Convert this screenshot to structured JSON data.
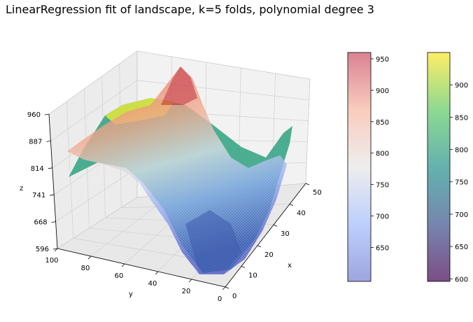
{
  "chart_data": [
    {
      "type": "surface3d",
      "title": "LinearRegression fit of landscape, k=5 folds, polynomial degree 3",
      "xlabel": "x",
      "ylabel": "y",
      "zlabel": "z",
      "xlim": [
        0,
        50
      ],
      "ylim": [
        0,
        100
      ],
      "zlim": [
        596,
        960
      ],
      "x_ticks": [
        0,
        10,
        20,
        30,
        40,
        50
      ],
      "y_ticks": [
        0,
        20,
        40,
        60,
        80,
        100
      ],
      "z_ticks": [
        "596",
        "668",
        "741",
        "814",
        "887",
        "960"
      ],
      "grid": true,
      "series": [
        {
          "colormap": "coolwarm",
          "alpha": 0.5,
          "range": [
            596,
            960
          ]
        },
        {
          "colormap": "viridis",
          "alpha": 0.7,
          "range": [
            596,
            950
          ]
        }
      ]
    },
    {
      "type": "colorbar",
      "colormap": "coolwarm",
      "range": [
        596,
        960
      ],
      "ticks": [
        650,
        700,
        750,
        800,
        850,
        900,
        950
      ]
    },
    {
      "type": "colorbar",
      "colormap": "viridis",
      "range": [
        596,
        950
      ],
      "ticks": [
        600,
        650,
        700,
        750,
        800,
        850,
        900
      ]
    }
  ]
}
